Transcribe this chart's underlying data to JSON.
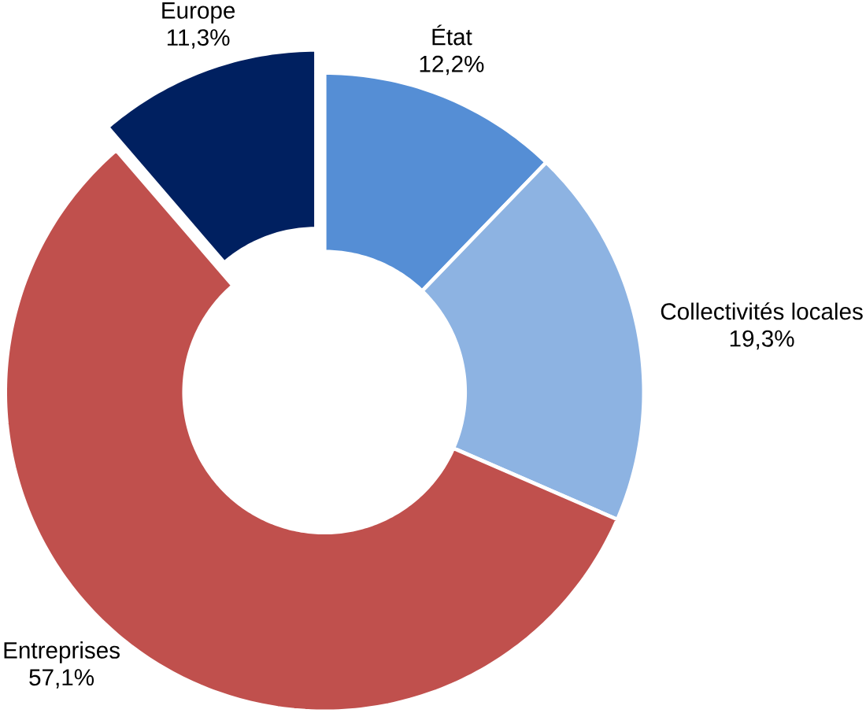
{
  "chart_data": {
    "type": "donut",
    "categories": [
      "État",
      "Collectivités  locales",
      "Entreprises",
      "Europe"
    ],
    "values": [
      12.2,
      19.3,
      57.1,
      11.3
    ],
    "colors": [
      "#558ed5",
      "#8db3e2",
      "#c0504d",
      "#002060"
    ],
    "value_labels": [
      "12,2%",
      "19,3%",
      "57,1%",
      "11,3%"
    ]
  }
}
